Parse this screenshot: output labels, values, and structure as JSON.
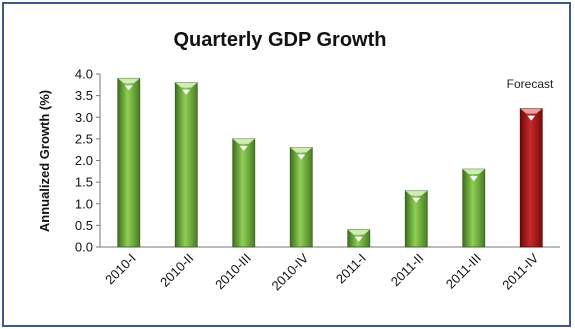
{
  "chart_data": {
    "type": "bar",
    "title": "Quarterly GDP Growth",
    "xlabel": "",
    "ylabel": "Annualized Growth (%)",
    "categories": [
      "2010-I",
      "2010-II",
      "2010-III",
      "2010-IV",
      "2011-I",
      "2011-II",
      "2011-III",
      "2011-IV"
    ],
    "values": [
      3.9,
      3.8,
      2.5,
      2.3,
      0.4,
      1.3,
      1.8,
      3.2
    ],
    "ylim": [
      0,
      4.0
    ],
    "yticks": [
      "0.0",
      "0.5",
      "1.0",
      "1.5",
      "2.0",
      "2.5",
      "3.0",
      "3.5",
      "4.0"
    ],
    "grid": false,
    "annotation": "Forecast",
    "colors": {
      "actual": "#6aa83a",
      "forecast": "#a01212"
    },
    "forecast_categories": [
      "2011-IV"
    ]
  }
}
